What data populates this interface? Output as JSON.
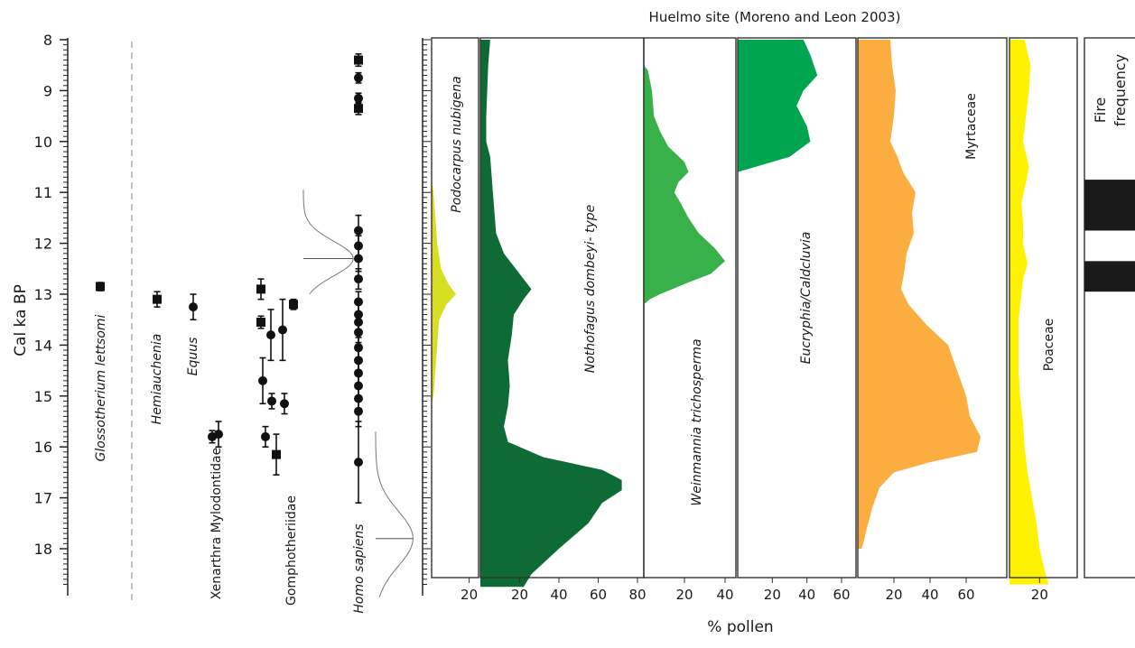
{
  "chart_data": {
    "type": "area",
    "title": "Huelmo site (Moreno and Leon 2003)",
    "ylabel": "Cal ka BP",
    "xlabel": "% pollen",
    "ylim": [
      8,
      18.7
    ],
    "y_ticks": [
      "8",
      "9",
      "10",
      "11",
      "12",
      "13",
      "14",
      "15",
      "16",
      "17",
      "18"
    ],
    "taxa_dates": [
      {
        "name": "Glossotherium lettsomi",
        "points": [
          {
            "age": 12.85,
            "err": 0.08,
            "marker": "square"
          }
        ]
      },
      {
        "name": "Hemiauchenia",
        "points": [
          {
            "age": 13.1,
            "err": 0.15,
            "marker": "square"
          }
        ]
      },
      {
        "name": "Equus",
        "points": [
          {
            "age": 13.25,
            "err": 0.25,
            "marker": "circle"
          }
        ]
      },
      {
        "name": "Xenarthra Mylodontidae",
        "points": [
          {
            "age": 15.8,
            "err": 0.12,
            "marker": "circle"
          },
          {
            "age": 15.75,
            "err": 0.25,
            "marker": "circle"
          }
        ]
      },
      {
        "name": "Gomphotheriidae",
        "points": [
          {
            "age": 12.9,
            "err": 0.2,
            "marker": "square"
          },
          {
            "age": 13.55,
            "err": 0.12,
            "marker": "square"
          },
          {
            "age": 14.7,
            "err": 0.45,
            "marker": "circle"
          },
          {
            "age": 15.8,
            "err": 0.2,
            "marker": "circle"
          },
          {
            "age": 13.8,
            "err": 0.5,
            "marker": "circle"
          },
          {
            "age": 15.1,
            "err": 0.15,
            "marker": "circle"
          },
          {
            "age": 16.15,
            "err": 0.4,
            "marker": "square"
          },
          {
            "age": 13.7,
            "err": 0.6,
            "marker": "circle"
          },
          {
            "age": 15.15,
            "err": 0.2,
            "marker": "circle"
          },
          {
            "age": 13.2,
            "err": 0.1,
            "marker": "square"
          }
        ]
      },
      {
        "name": "Homo sapiens",
        "points": [
          {
            "age": 8.4,
            "err": 0.12,
            "marker": "square"
          },
          {
            "age": 8.75,
            "err": 0.1,
            "marker": "circle"
          },
          {
            "age": 9.15,
            "err": 0.1,
            "marker": "circle"
          },
          {
            "age": 9.35,
            "err": 0.12,
            "marker": "square"
          },
          {
            "age": 11.75,
            "err": 0.3,
            "marker": "circle"
          },
          {
            "age": 12.05,
            "err": 0.2,
            "marker": "circle"
          },
          {
            "age": 12.3,
            "err": 0.25,
            "marker": "circle"
          },
          {
            "age": 12.7,
            "err": 0.2,
            "marker": "circle"
          },
          {
            "age": 13.15,
            "err": 0.2,
            "marker": "circle"
          },
          {
            "age": 13.4,
            "err": 0.2,
            "marker": "circle"
          },
          {
            "age": 13.55,
            "err": 0.2,
            "marker": "circle"
          },
          {
            "age": 13.75,
            "err": 0.2,
            "marker": "circle"
          },
          {
            "age": 14.05,
            "err": 0.2,
            "marker": "circle"
          },
          {
            "age": 14.3,
            "err": 0.2,
            "marker": "circle"
          },
          {
            "age": 14.55,
            "err": 0.2,
            "marker": "circle"
          },
          {
            "age": 14.8,
            "err": 0.2,
            "marker": "circle"
          },
          {
            "age": 15.05,
            "err": 0.2,
            "marker": "circle"
          },
          {
            "age": 15.3,
            "err": 0.3,
            "marker": "circle"
          },
          {
            "age": 16.3,
            "err": 0.8,
            "marker": "circle"
          }
        ]
      }
    ],
    "age_distributions": [
      {
        "peak_age": 12.3,
        "start_age": 10.95,
        "end_age": 13.0,
        "amplitude": 0.4
      },
      {
        "peak_age": 17.8,
        "start_age": 15.7,
        "end_age": 18.95,
        "amplitude": 0.3
      }
    ],
    "pollen_panels": [
      {
        "name": "Podocarpus nubigena",
        "color": "#d7df23",
        "xmax": 25,
        "ticks": [
          20
        ],
        "profile": [
          [
            10.7,
            0
          ],
          [
            11.0,
            1
          ],
          [
            11.5,
            2
          ],
          [
            12.0,
            3
          ],
          [
            12.5,
            5
          ],
          [
            12.8,
            9
          ],
          [
            13.0,
            13
          ],
          [
            13.2,
            8
          ],
          [
            13.5,
            4
          ],
          [
            14.0,
            3
          ],
          [
            14.5,
            2
          ],
          [
            15.0,
            1
          ],
          [
            15.15,
            0
          ]
        ]
      },
      {
        "name": "Nothofagus dombeyi- type",
        "color": "#0f6b35",
        "xmax": 80,
        "ticks": [
          20,
          40,
          60,
          80
        ],
        "profile": [
          [
            8.0,
            5
          ],
          [
            8.5,
            4
          ],
          [
            9.5,
            3
          ],
          [
            10.0,
            3
          ],
          [
            10.3,
            5
          ],
          [
            10.8,
            6
          ],
          [
            11.3,
            7
          ],
          [
            11.8,
            8
          ],
          [
            12.2,
            12
          ],
          [
            12.6,
            20
          ],
          [
            12.9,
            26
          ],
          [
            13.1,
            22
          ],
          [
            13.4,
            17
          ],
          [
            13.8,
            16
          ],
          [
            14.3,
            14
          ],
          [
            14.8,
            15
          ],
          [
            15.2,
            14
          ],
          [
            15.6,
            12
          ],
          [
            15.9,
            14
          ],
          [
            16.2,
            32
          ],
          [
            16.45,
            62
          ],
          [
            16.65,
            72
          ],
          [
            16.85,
            72
          ],
          [
            17.1,
            62
          ],
          [
            17.5,
            55
          ],
          [
            18.0,
            40
          ],
          [
            18.5,
            26
          ],
          [
            18.75,
            22
          ]
        ]
      },
      {
        "name": "Weinmannia trichosperma",
        "color": "#39b14a",
        "xmax": 40,
        "ticks": [
          20,
          40
        ],
        "profile": [
          [
            8.5,
            0
          ],
          [
            8.6,
            2
          ],
          [
            9.0,
            4
          ],
          [
            9.5,
            5
          ],
          [
            9.8,
            8
          ],
          [
            10.1,
            12
          ],
          [
            10.4,
            20
          ],
          [
            10.6,
            22
          ],
          [
            10.8,
            17
          ],
          [
            11.0,
            15
          ],
          [
            11.2,
            18
          ],
          [
            11.5,
            22
          ],
          [
            11.8,
            27
          ],
          [
            12.1,
            35
          ],
          [
            12.35,
            40
          ],
          [
            12.6,
            33
          ],
          [
            12.8,
            20
          ],
          [
            13.0,
            8
          ],
          [
            13.1,
            3
          ],
          [
            13.2,
            0
          ]
        ]
      },
      {
        "name": "Eucryphia/Caldcluvia",
        "color": "#00a54f",
        "xmax": 60,
        "ticks": [
          20,
          40,
          60
        ],
        "profile": [
          [
            8.0,
            38
          ],
          [
            8.3,
            42
          ],
          [
            8.7,
            46
          ],
          [
            9.0,
            38
          ],
          [
            9.3,
            34
          ],
          [
            9.7,
            40
          ],
          [
            10.0,
            42
          ],
          [
            10.3,
            30
          ],
          [
            10.5,
            10
          ],
          [
            10.6,
            0
          ]
        ]
      },
      {
        "name": "Myrtaceae",
        "color": "#fbad3f",
        "xmax": 75,
        "ticks": [
          20,
          40,
          60
        ],
        "profile": [
          [
            8.0,
            18
          ],
          [
            8.5,
            19
          ],
          [
            9.0,
            21
          ],
          [
            9.5,
            20
          ],
          [
            10.0,
            18
          ],
          [
            10.3,
            22
          ],
          [
            10.6,
            25
          ],
          [
            11.0,
            32
          ],
          [
            11.4,
            30
          ],
          [
            11.8,
            31
          ],
          [
            12.2,
            27
          ],
          [
            12.5,
            26
          ],
          [
            12.9,
            24
          ],
          [
            13.2,
            28
          ],
          [
            13.6,
            38
          ],
          [
            14.0,
            50
          ],
          [
            14.5,
            55
          ],
          [
            15.0,
            60
          ],
          [
            15.4,
            62
          ],
          [
            15.8,
            68
          ],
          [
            16.1,
            66
          ],
          [
            16.3,
            40
          ],
          [
            16.5,
            20
          ],
          [
            16.8,
            12
          ],
          [
            17.2,
            8
          ],
          [
            17.6,
            5
          ],
          [
            17.9,
            3
          ],
          [
            18.0,
            2
          ]
        ]
      },
      {
        "name": "Poaceae",
        "color": "#fff200",
        "xmax": 30,
        "ticks": [
          20
        ],
        "profile": [
          [
            8.0,
            10
          ],
          [
            8.5,
            14
          ],
          [
            9.0,
            13
          ],
          [
            9.5,
            11
          ],
          [
            10.0,
            9
          ],
          [
            10.5,
            13
          ],
          [
            10.8,
            11
          ],
          [
            11.2,
            8
          ],
          [
            11.6,
            9
          ],
          [
            12.0,
            9
          ],
          [
            12.4,
            12
          ],
          [
            12.7,
            9
          ],
          [
            13.0,
            8
          ],
          [
            13.5,
            6
          ],
          [
            14.0,
            6
          ],
          [
            14.5,
            6
          ],
          [
            15.0,
            7
          ],
          [
            15.5,
            9
          ],
          [
            16.0,
            10
          ],
          [
            16.5,
            12
          ],
          [
            17.0,
            15
          ],
          [
            17.5,
            18
          ],
          [
            18.0,
            20
          ],
          [
            18.5,
            24
          ],
          [
            18.7,
            26
          ]
        ]
      }
    ],
    "fire_frequency": {
      "title": "Fire frequency",
      "bars": [
        [
          10.75,
          11.75
        ],
        [
          12.35,
          12.95
        ]
      ]
    }
  }
}
